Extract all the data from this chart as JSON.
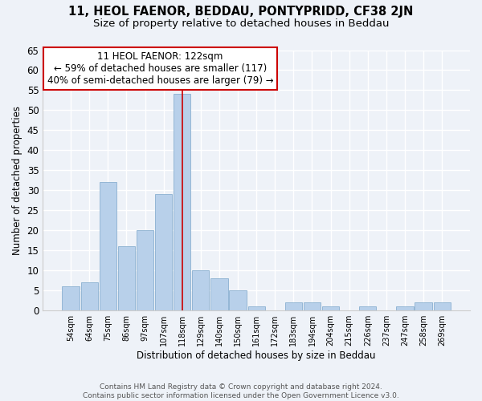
{
  "title": "11, HEOL FAENOR, BEDDAU, PONTYPRIDD, CF38 2JN",
  "subtitle": "Size of property relative to detached houses in Beddau",
  "xlabel": "Distribution of detached houses by size in Beddau",
  "ylabel": "Number of detached properties",
  "bar_labels": [
    "54sqm",
    "64sqm",
    "75sqm",
    "86sqm",
    "97sqm",
    "107sqm",
    "118sqm",
    "129sqm",
    "140sqm",
    "150sqm",
    "161sqm",
    "172sqm",
    "183sqm",
    "194sqm",
    "204sqm",
    "215sqm",
    "226sqm",
    "237sqm",
    "247sqm",
    "258sqm",
    "269sqm"
  ],
  "bar_values": [
    6,
    7,
    32,
    16,
    20,
    29,
    54,
    10,
    8,
    5,
    1,
    0,
    2,
    2,
    1,
    0,
    1,
    0,
    1,
    2,
    2
  ],
  "bar_color": "#b8d0ea",
  "bar_edge_color": "#8ab0d0",
  "vline_x_index": 6,
  "vline_color": "#cc0000",
  "annotation_line1": "11 HEOL FAENOR: 122sqm",
  "annotation_line2": "← 59% of detached houses are smaller (117)",
  "annotation_line3": "40% of semi-detached houses are larger (79) →",
  "annotation_box_color": "#ffffff",
  "annotation_box_edge": "#cc0000",
  "ylim": [
    0,
    65
  ],
  "yticks": [
    0,
    5,
    10,
    15,
    20,
    25,
    30,
    35,
    40,
    45,
    50,
    55,
    60,
    65
  ],
  "footnote": "Contains HM Land Registry data © Crown copyright and database right 2024.\nContains public sector information licensed under the Open Government Licence v3.0.",
  "bg_color": "#eef2f8",
  "grid_color": "#ffffff",
  "title_fontsize": 10.5,
  "subtitle_fontsize": 9.5,
  "annotation_fontsize": 8.5,
  "label_fontsize": 7,
  "ylabel_fontsize": 8.5,
  "xlabel_fontsize": 8.5,
  "footnote_fontsize": 6.5
}
